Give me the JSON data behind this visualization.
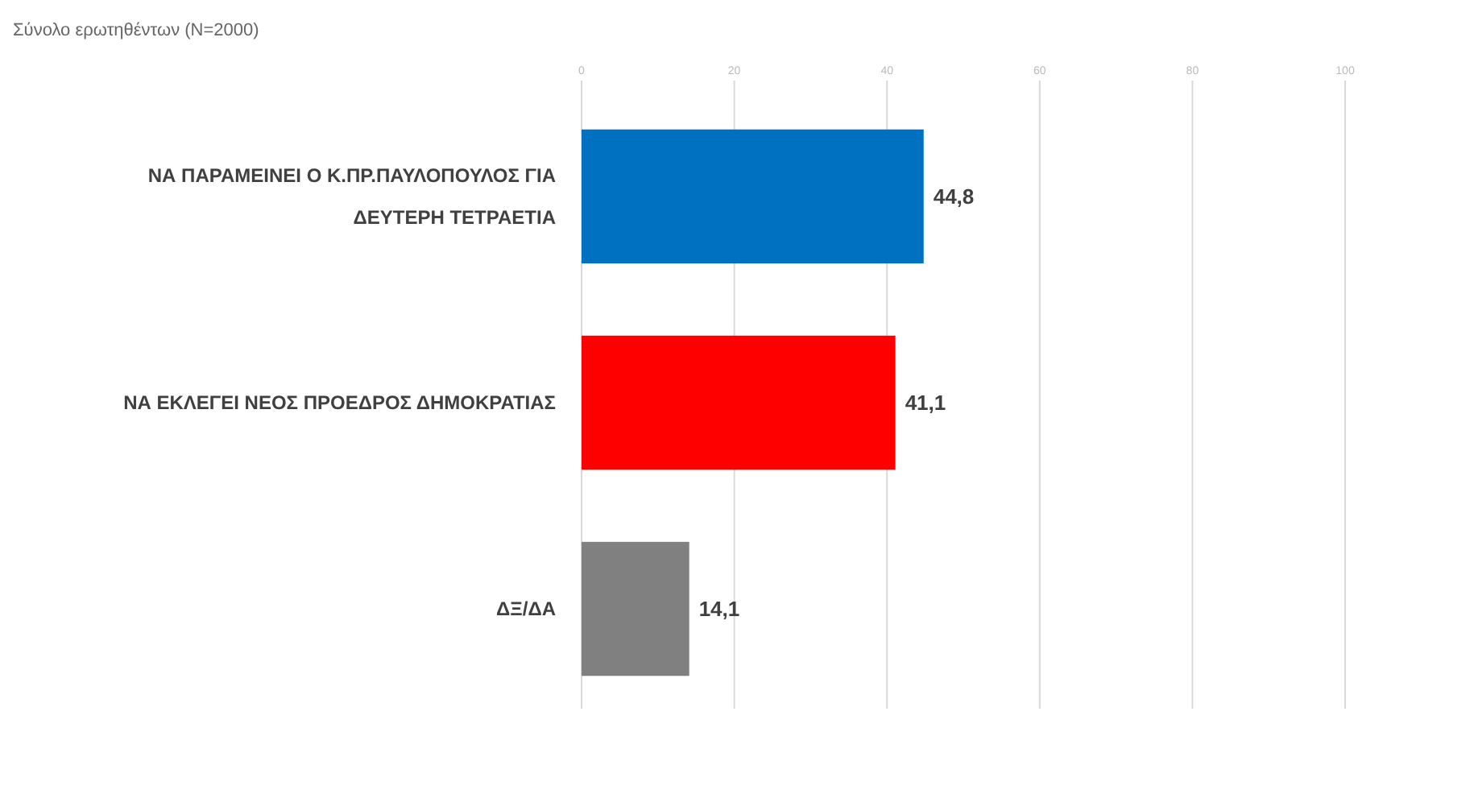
{
  "chart_data": {
    "type": "bar",
    "orientation": "horizontal",
    "subtitle": "Σύνολο ερωτηθέντων (N=2000)",
    "categories": [
      "ΝΑ ΠΑΡΑΜΕΙΝΕΙ Ο Κ.ΠΡ.ΠΑΥΛΟΠΟΥΛΟΣ ΓΙΑ ΔΕΥΤΕΡΗ ΤΕΤΡΑΕΤΙΑ",
      "ΝΑ ΕΚΛΕΓΕΙ ΝΕΟΣ ΠΡΟΕΔΡΟΣ ΔΗΜΟΚΡΑΤΙΑΣ",
      "ΔΞ/ΔΑ"
    ],
    "values": [
      44.8,
      41.1,
      14.1
    ],
    "colors": [
      "#0070c0",
      "#ff0000",
      "#808080"
    ],
    "value_labels": [
      "44,8",
      "41,1",
      "14,1"
    ],
    "xlim": [
      0,
      100
    ],
    "xticks": [
      0,
      20,
      40,
      60,
      80,
      100
    ],
    "grid": "x"
  }
}
